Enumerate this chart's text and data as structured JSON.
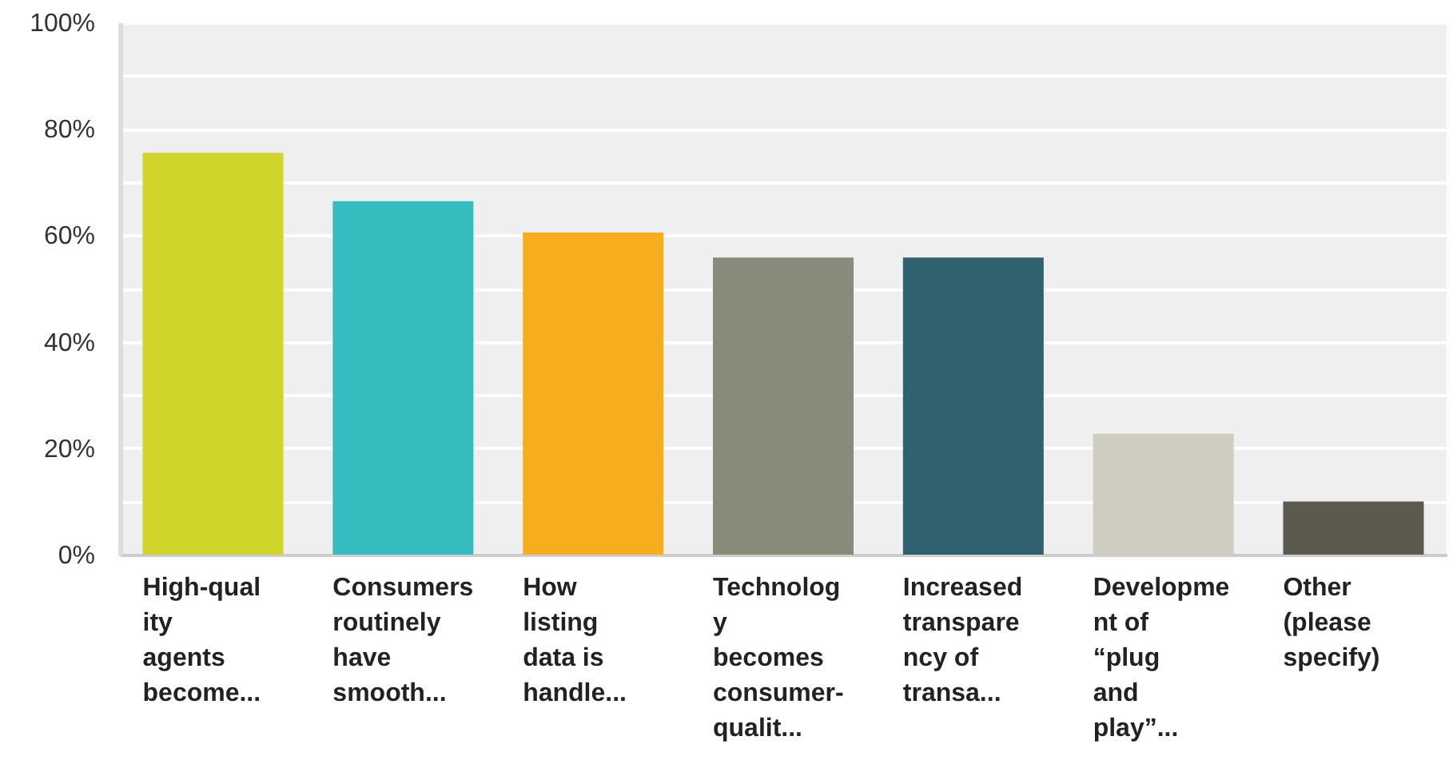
{
  "chart_data": {
    "type": "bar",
    "categories": [
      "High-qual\nity\nagents\nbecome...",
      "Consumers\nroutinely\nhave\nsmooth...",
      "How\nlisting\ndata is\nhandle...",
      "Technolog\ny\nbecomes\nconsumer-\nqualit...",
      "Increased\ntranspare\nncy of\ntransa...",
      "Developme\nnt of\n“plug\nand\nplay”...",
      "Other\n(please\nspecify)"
    ],
    "values": [
      75.5,
      66.4,
      60.5,
      55.8,
      55.8,
      22.7,
      10.0
    ],
    "colors": [
      "#cfd52a",
      "#34bcbe",
      "#f6ae1f",
      "#8a8a7a",
      "#2f616e",
      "#cfcdbf",
      "#5c5a4c"
    ],
    "ylim": [
      0,
      100
    ],
    "yticks": [
      {
        "value": 0,
        "label": "0%"
      },
      {
        "value": 10,
        "label": null
      },
      {
        "value": 20,
        "label": "20%"
      },
      {
        "value": 30,
        "label": null
      },
      {
        "value": 40,
        "label": "40%"
      },
      {
        "value": 50,
        "label": null
      },
      {
        "value": 60,
        "label": "60%"
      },
      {
        "value": 70,
        "label": null
      },
      {
        "value": 80,
        "label": "80%"
      },
      {
        "value": 90,
        "label": null
      },
      {
        "value": 100,
        "label": "100%"
      }
    ],
    "grid": true
  }
}
